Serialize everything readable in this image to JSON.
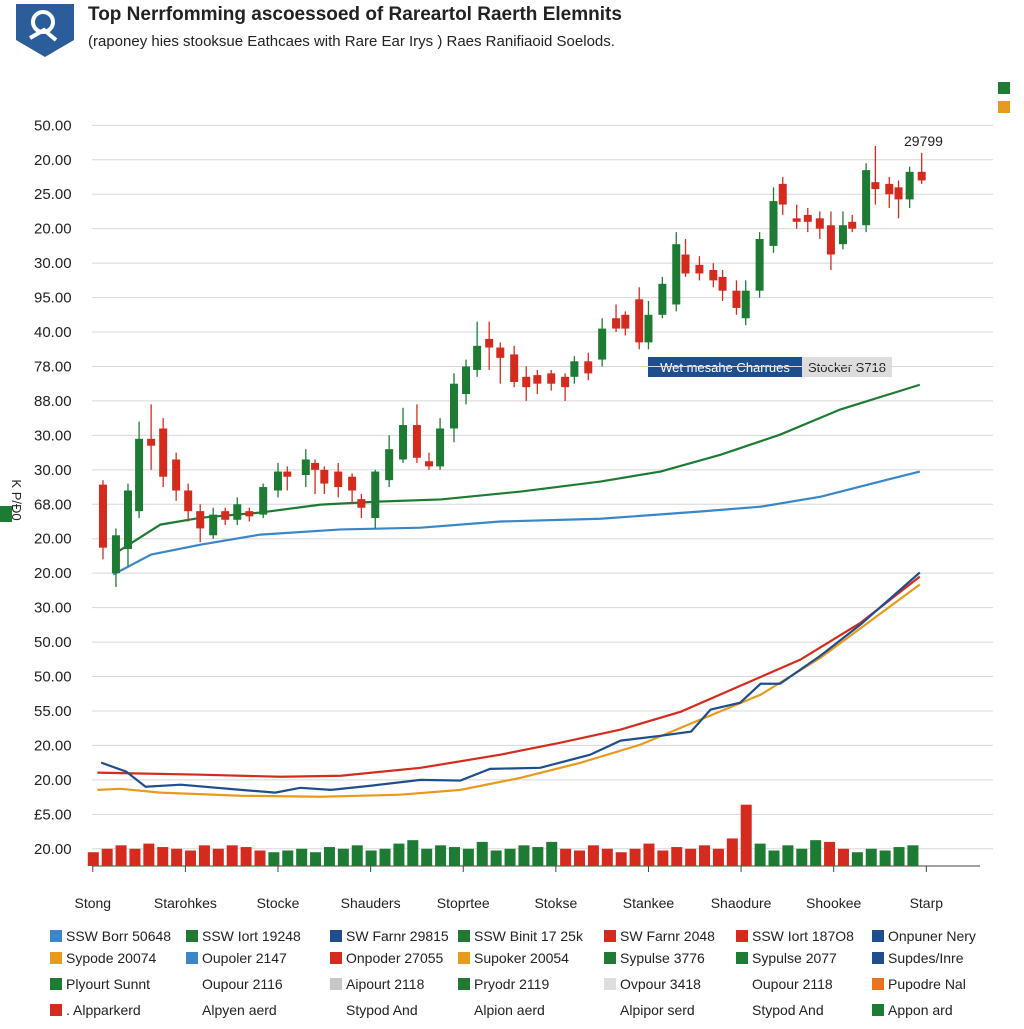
{
  "chart_data": {
    "type": "candlestick",
    "title": "Top Nerrfomming ascoessoed of Rareartol Raerth  Elemnits",
    "subtitle": "(raponey hies stooksue Eathcaes with Rare Ear Irys ) Raes Ranifiaoid Soelods.",
    "y_label": "K P/Ɖ0",
    "annotations": [
      "29799",
      "Wet mesahe Charrues",
      "Stocker S718"
    ],
    "xlim": [
      -0.3,
      9.72
    ],
    "ylim": [
      -0.5,
      21.3
    ],
    "grid": true,
    "xticks": [
      {
        "value": 0,
        "label": "Stong"
      },
      {
        "value": 1,
        "label": "Starohkes"
      },
      {
        "value": 2,
        "label": "Stocke"
      },
      {
        "value": 3,
        "label": "Shauders"
      },
      {
        "value": 4,
        "label": "Stoprtee"
      },
      {
        "value": 5,
        "label": "Stokse"
      },
      {
        "value": 6,
        "label": "Stankee"
      },
      {
        "value": 7,
        "label": "Shaodure"
      },
      {
        "value": 8,
        "label": "Shookee"
      },
      {
        "value": 9,
        "label": "Starp"
      }
    ],
    "yticks": [
      {
        "value": 0,
        "label": "20.00"
      },
      {
        "value": 1,
        "label": "£5.00"
      },
      {
        "value": 2,
        "label": "20.00"
      },
      {
        "value": 3,
        "label": "20.00"
      },
      {
        "value": 4,
        "label": "55.00"
      },
      {
        "value": 5,
        "label": "50.00"
      },
      {
        "value": 6,
        "label": "50.00"
      },
      {
        "value": 7,
        "label": "30.00"
      },
      {
        "value": 8,
        "label": "20.00"
      },
      {
        "value": 9,
        "label": "20.00"
      },
      {
        "value": 10,
        "label": "68.00"
      },
      {
        "value": 11,
        "label": "30.00"
      },
      {
        "value": 12,
        "label": "30.00"
      },
      {
        "value": 13,
        "label": "88.00"
      },
      {
        "value": 14,
        "label": "78.00"
      },
      {
        "value": 15,
        "label": "40.00"
      },
      {
        "value": 16,
        "label": "95.00"
      },
      {
        "value": 17,
        "label": "30.00"
      },
      {
        "value": 18,
        "label": "20.00"
      },
      {
        "value": 19,
        "label": "25.00"
      },
      {
        "value": 20,
        "label": "20.00"
      },
      {
        "value": 21,
        "label": "50.00"
      }
    ],
    "up_color": "#1e7b34",
    "down_color": "#d52b1e",
    "candles": {
      "x": [
        0.11,
        0.25,
        0.38,
        0.5,
        0.63,
        0.76,
        0.9,
        1.03,
        1.16,
        1.3,
        1.43,
        1.56,
        1.69,
        1.84,
        2.0,
        2.1,
        2.3,
        2.4,
        2.5,
        2.65,
        2.8,
        2.9,
        3.05,
        3.2,
        3.35,
        3.5,
        3.63,
        3.75,
        3.9,
        4.03,
        4.15,
        4.28,
        4.4,
        4.55,
        4.68,
        4.8,
        4.95,
        5.1,
        5.2,
        5.35,
        5.5,
        5.65,
        5.75,
        5.9,
        6.0,
        6.15,
        6.3,
        6.4,
        6.55,
        6.7,
        6.8,
        6.95,
        7.05,
        7.2,
        7.35,
        7.45,
        7.6,
        7.72,
        7.85,
        7.97,
        8.1,
        8.2,
        8.35,
        8.45,
        8.6,
        8.7,
        8.82,
        8.95
      ],
      "open": [
        10.57,
        8.0,
        8.7,
        9.8,
        11.9,
        12.2,
        11.3,
        10.4,
        9.8,
        9.1,
        9.8,
        9.55,
        9.8,
        9.7,
        10.4,
        10.95,
        10.85,
        11.2,
        11.0,
        10.95,
        10.8,
        10.15,
        9.6,
        10.7,
        11.3,
        12.3,
        11.25,
        11.1,
        12.2,
        13.2,
        13.9,
        14.8,
        14.55,
        14.35,
        13.7,
        13.75,
        13.8,
        13.7,
        13.7,
        14.15,
        14.2,
        15.4,
        15.5,
        15.95,
        14.7,
        15.5,
        15.8,
        17.25,
        16.95,
        16.8,
        16.6,
        16.2,
        15.4,
        16.2,
        17.5,
        19.3,
        18.3,
        18.4,
        18.3,
        18.1,
        17.55,
        18.2,
        18.1,
        19.35,
        19.3,
        19.2,
        18.85,
        19.65
      ],
      "high": [
        10.7,
        9.3,
        10.6,
        12.4,
        12.9,
        12.5,
        11.5,
        10.6,
        10.0,
        9.9,
        9.9,
        10.2,
        9.9,
        10.6,
        11.2,
        11.1,
        11.6,
        11.3,
        11.1,
        11.2,
        10.9,
        10.3,
        11.0,
        12.0,
        12.8,
        12.9,
        11.5,
        12.5,
        13.8,
        14.2,
        15.3,
        15.3,
        14.7,
        14.6,
        14.0,
        13.9,
        13.9,
        13.8,
        14.3,
        14.4,
        15.4,
        15.8,
        15.6,
        16.3,
        15.9,
        16.6,
        17.9,
        17.7,
        17.2,
        17.0,
        16.8,
        16.5,
        16.5,
        17.9,
        19.2,
        19.5,
        18.7,
        18.6,
        18.5,
        18.5,
        18.5,
        18.4,
        19.9,
        20.4,
        19.5,
        19.4,
        19.8,
        20.2
      ],
      "low": [
        8.4,
        7.6,
        8.2,
        9.6,
        11.0,
        10.5,
        10.1,
        9.5,
        8.9,
        9.0,
        9.4,
        9.4,
        9.5,
        9.6,
        10.2,
        10.4,
        10.5,
        10.3,
        10.3,
        10.2,
        10.0,
        9.6,
        9.3,
        10.5,
        11.2,
        11.2,
        11.0,
        11.0,
        11.8,
        12.9,
        13.7,
        13.9,
        13.5,
        13.4,
        13.0,
        13.2,
        13.3,
        13.0,
        13.5,
        13.6,
        14.0,
        15.0,
        14.9,
        14.5,
        14.5,
        15.4,
        15.6,
        16.6,
        16.5,
        16.3,
        15.9,
        15.5,
        15.2,
        16.0,
        17.3,
        18.4,
        18.0,
        17.9,
        17.7,
        16.8,
        17.4,
        17.9,
        17.9,
        18.7,
        18.6,
        18.3,
        18.6,
        19.3
      ],
      "close": [
        8.74,
        9.1,
        10.4,
        11.9,
        11.7,
        10.8,
        10.4,
        9.8,
        9.3,
        9.7,
        9.55,
        10.0,
        9.65,
        10.5,
        10.95,
        10.8,
        11.3,
        11.0,
        10.6,
        10.5,
        10.4,
        9.9,
        10.95,
        11.6,
        12.3,
        11.35,
        11.1,
        12.2,
        13.5,
        14.0,
        14.6,
        14.55,
        14.25,
        13.55,
        13.4,
        13.5,
        13.5,
        13.4,
        14.15,
        13.8,
        15.1,
        15.1,
        15.1,
        14.7,
        15.5,
        16.4,
        17.55,
        16.7,
        16.7,
        16.5,
        16.2,
        15.7,
        16.2,
        17.7,
        18.8,
        18.7,
        18.2,
        18.2,
        18.0,
        17.25,
        18.1,
        18.0,
        19.7,
        19.15,
        19.0,
        18.85,
        19.65,
        19.4
      ]
    },
    "series": [
      {
        "color": "#1e7b34",
        "x": [
          0.22,
          0.73,
          1.17,
          1.81,
          2.46,
          3.11,
          3.76,
          4.62,
          5.48,
          6.13,
          6.78,
          7.42,
          8.07,
          8.93
        ],
        "values": [
          8.54,
          9.41,
          9.61,
          9.76,
          9.99,
          10.08,
          10.14,
          10.37,
          10.66,
          10.95,
          11.44,
          12.02,
          12.75,
          13.47
        ]
      },
      {
        "color": "#3a86c8",
        "x": [
          0.22,
          0.63,
          1.17,
          1.81,
          2.68,
          3.54,
          4.4,
          5.48,
          6.56,
          7.21,
          7.86,
          8.5,
          8.93
        ],
        "values": [
          7.96,
          8.54,
          8.83,
          9.12,
          9.27,
          9.32,
          9.5,
          9.58,
          9.79,
          9.93,
          10.22,
          10.66,
          10.95
        ]
      },
      {
        "color": "#d52b1e",
        "x": [
          0.05,
          1.17,
          2.03,
          2.68,
          3.54,
          4.4,
          5.05,
          5.7,
          6.35,
          6.99,
          7.64,
          8.29,
          8.93
        ],
        "values": [
          2.21,
          2.15,
          2.09,
          2.12,
          2.35,
          2.73,
          3.08,
          3.46,
          3.98,
          4.73,
          5.49,
          6.56,
          7.9
        ]
      },
      {
        "color": "#e89a1c",
        "x": [
          0.05,
          0.3,
          0.73,
          1.6,
          2.46,
          3.32,
          3.97,
          4.62,
          5.27,
          5.91,
          6.56,
          7.21,
          7.86,
          8.93
        ],
        "values": [
          1.71,
          1.74,
          1.63,
          1.54,
          1.51,
          1.57,
          1.71,
          2.06,
          2.5,
          3.02,
          3.75,
          4.47,
          5.55,
          7.67
        ]
      },
      {
        "color": "#1f4e8c",
        "x": [
          0.09,
          0.36,
          0.57,
          0.95,
          1.6,
          1.97,
          2.24,
          2.57,
          3.0,
          3.54,
          3.97,
          4.29,
          4.83,
          5.37,
          5.7,
          6.13,
          6.46,
          6.67,
          6.99,
          7.21,
          7.42,
          7.86,
          8.29,
          8.93
        ],
        "values": [
          2.5,
          2.24,
          1.8,
          1.86,
          1.71,
          1.63,
          1.77,
          1.71,
          1.83,
          2.0,
          1.98,
          2.32,
          2.35,
          2.73,
          3.14,
          3.28,
          3.4,
          4.04,
          4.24,
          4.79,
          4.79,
          5.61,
          6.51,
          8.02
        ]
      }
    ],
    "volume": {
      "x": [
        0.0,
        0.15,
        0.3,
        0.45,
        0.6,
        0.75,
        0.9,
        1.05,
        1.2,
        1.35,
        1.5,
        1.65,
        1.8,
        1.95,
        2.1,
        2.25,
        2.4,
        2.55,
        2.7,
        2.85,
        3.0,
        3.15,
        3.3,
        3.45,
        3.6,
        3.75,
        3.9,
        4.05,
        4.2,
        4.35,
        4.5,
        4.65,
        4.8,
        4.95,
        5.1,
        5.25,
        5.4,
        5.55,
        5.7,
        5.85,
        6.0,
        6.15,
        6.3,
        6.45,
        6.6,
        6.75,
        6.9,
        7.05,
        7.2,
        7.35,
        7.5,
        7.65,
        7.8,
        7.95,
        8.1,
        8.25,
        8.4,
        8.55,
        8.7,
        8.85
      ],
      "values": [
        -0.1,
        0.0,
        0.1,
        0.0,
        0.15,
        0.05,
        0.0,
        -0.05,
        0.1,
        0.0,
        0.1,
        0.05,
        -0.05,
        -0.1,
        -0.05,
        0.0,
        -0.1,
        0.05,
        0.0,
        0.1,
        -0.05,
        0.0,
        0.15,
        0.25,
        0.0,
        0.1,
        0.05,
        0.0,
        0.2,
        -0.05,
        0.0,
        0.1,
        0.05,
        0.2,
        0.0,
        -0.05,
        0.1,
        0.0,
        -0.1,
        0.0,
        0.15,
        -0.05,
        0.05,
        0.0,
        0.1,
        0.0,
        0.3,
        1.28,
        0.15,
        -0.05,
        0.1,
        0.0,
        0.25,
        0.2,
        0.0,
        -0.1,
        0.0,
        -0.05,
        0.05,
        0.1
      ],
      "colors": [
        "#d52b1e",
        "#d52b1e",
        "#d52b1e",
        "#d52b1e",
        "#d52b1e",
        "#d52b1e",
        "#d52b1e",
        "#d52b1e",
        "#d52b1e",
        "#d52b1e",
        "#d52b1e",
        "#d52b1e",
        "#d52b1e",
        "#1e7b34",
        "#1e7b34",
        "#1e7b34",
        "#1e7b34",
        "#1e7b34",
        "#1e7b34",
        "#1e7b34",
        "#1e7b34",
        "#1e7b34",
        "#1e7b34",
        "#1e7b34",
        "#1e7b34",
        "#1e7b34",
        "#1e7b34",
        "#1e7b34",
        "#1e7b34",
        "#1e7b34",
        "#1e7b34",
        "#1e7b34",
        "#1e7b34",
        "#1e7b34",
        "#d52b1e",
        "#d52b1e",
        "#d52b1e",
        "#d52b1e",
        "#d52b1e",
        "#d52b1e",
        "#d52b1e",
        "#d52b1e",
        "#d52b1e",
        "#d52b1e",
        "#d52b1e",
        "#d52b1e",
        "#d52b1e",
        "#d52b1e",
        "#1e7b34",
        "#1e7b34",
        "#1e7b34",
        "#1e7b34",
        "#1e7b34",
        "#d52b1e",
        "#d52b1e",
        "#1e7b34",
        "#1e7b34",
        "#1e7b34",
        "#1e7b34",
        "#1e7b34"
      ]
    },
    "legend": [
      {
        "label": "SSW Borr 50648",
        "color": "#3a86c8"
      },
      {
        "label": "SSW Iort 19248",
        "color": "#1e7b34"
      },
      {
        "label": "SW Farnr 29815",
        "color": "#1f4e8c"
      },
      {
        "label": "SSW Binit 17 25k",
        "color": "#1e7b34"
      },
      {
        "label": "SW Farnr 2048",
        "color": "#d52b1e"
      },
      {
        "label": "SSW Iort 187O8",
        "color": "#d52b1e"
      },
      {
        "label": "Onpuner Nery",
        "color": "#1f4e8c"
      },
      {
        "label": "Sypode 20074",
        "color": "#e89a1c"
      },
      {
        "label": "Oupoler 2147",
        "color": "#3a86c8"
      },
      {
        "label": "Onpoder 27055",
        "color": "#d52b1e"
      },
      {
        "label": "Supoker 20054",
        "color": "#e89a1c"
      },
      {
        "label": "Sypulse 3776",
        "color": "#1e7b34"
      },
      {
        "label": "Sypulse 2077",
        "color": "#1e7b34"
      },
      {
        "label": "Supdes/Inre",
        "color": "#1f4e8c"
      },
      {
        "label": "Plyourt Sunnt",
        "color": "#1e7b34"
      },
      {
        "label": "Oupour 2116"
      },
      {
        "label": "Aipourt 2118",
        "color": "#c8c8c8"
      },
      {
        "label": "Pryodr 2119",
        "color": "#1e7b34"
      },
      {
        "label": "Ovpour 3418",
        "color": "#dedede"
      },
      {
        "label": "Oupour 2118"
      },
      {
        "label": "Pupodre Nal",
        "color": "#e8731c"
      },
      {
        "label": ". Alpparkerd",
        "color": "#d52b1e"
      },
      {
        "label": "Alpyen aerd"
      },
      {
        "label": "Stypod And"
      },
      {
        "label": "Alpion aerd"
      },
      {
        "label": "Alpipor serd"
      },
      {
        "label": "Stypod And"
      },
      {
        "label": "Appon ard",
        "color": "#1e7b34"
      }
    ]
  }
}
